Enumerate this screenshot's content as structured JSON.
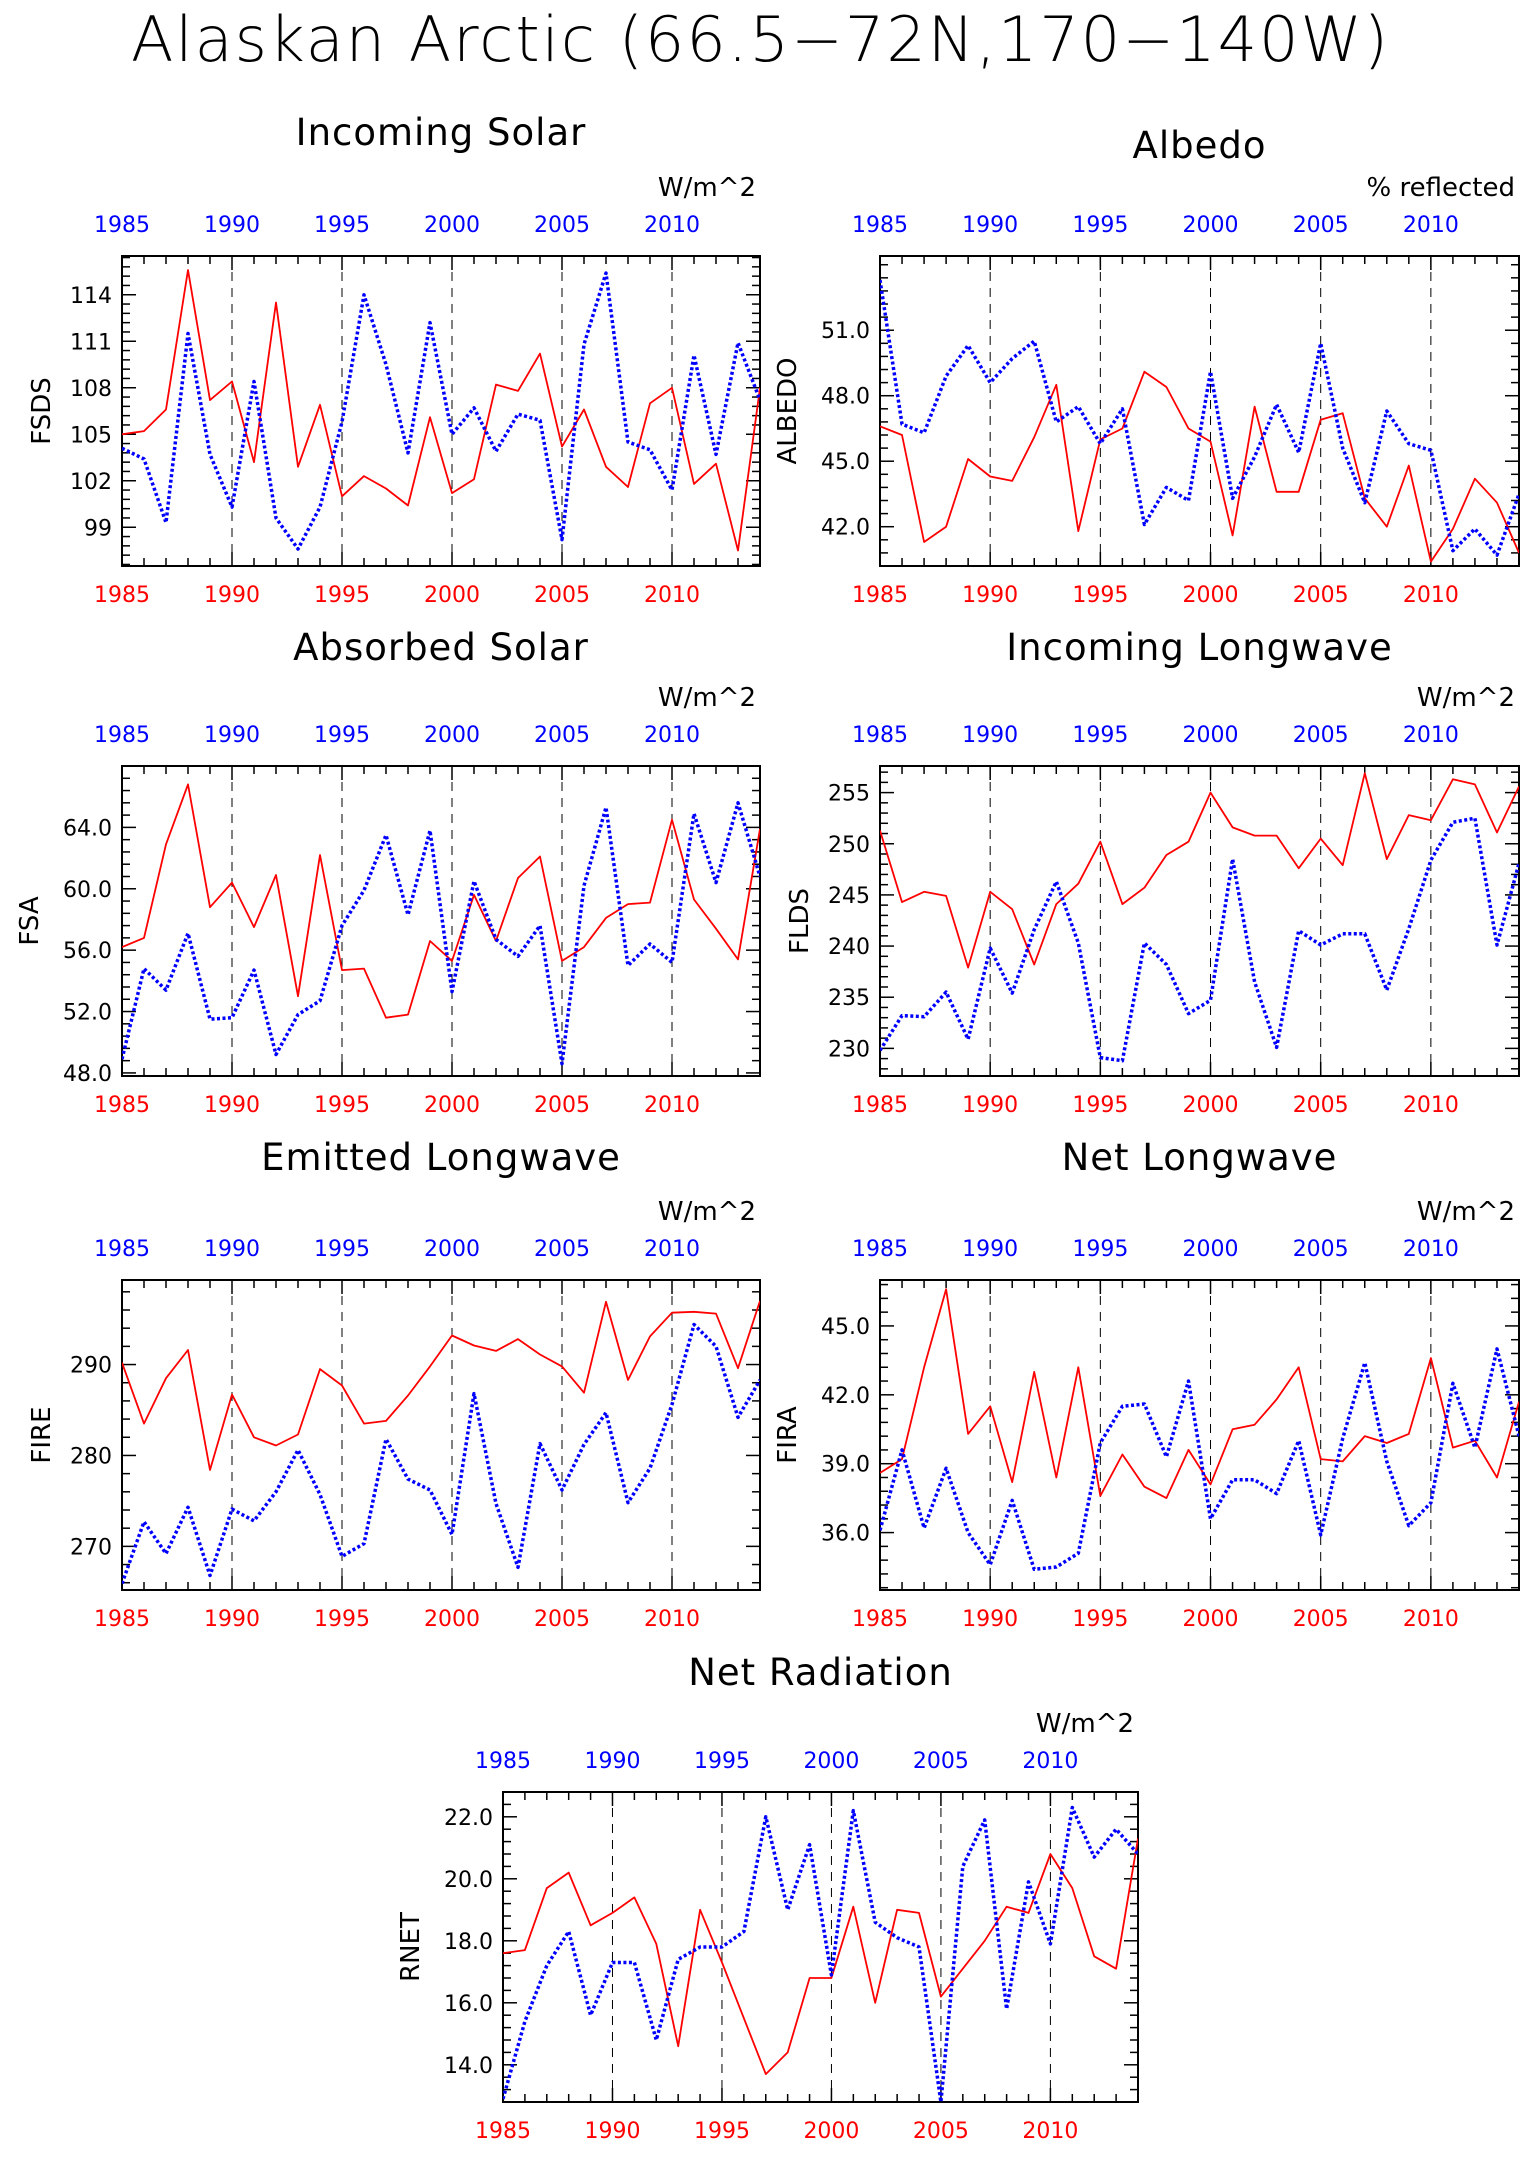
{
  "title": "Alaskan Arctic (66.5−72N,170−140W)",
  "colors": {
    "series_a": "#ff0000",
    "series_b": "#0000ff",
    "axes": "#000000"
  },
  "chart_data": [
    {
      "id": "fsds",
      "type": "line",
      "title": "Incoming Solar",
      "ylabel": "FSDS",
      "units": "W/m^2",
      "xlim": [
        1985,
        2014
      ],
      "ylim": [
        96.5,
        116.5
      ],
      "yticks": [
        99,
        102,
        105,
        108,
        111,
        114
      ],
      "yfmt": 0,
      "xticks": [
        1985,
        1990,
        1995,
        2000,
        2005,
        2010
      ],
      "x": [
        1985,
        1986,
        1987,
        1988,
        1989,
        1990,
        1991,
        1992,
        1993,
        1994,
        1995,
        1996,
        1997,
        1998,
        1999,
        2000,
        2001,
        2002,
        2003,
        2004,
        2005,
        2006,
        2007,
        2008,
        2009,
        2010,
        2011,
        2012,
        2013,
        2014
      ],
      "series": [
        {
          "style": "solid",
          "values": [
            105,
            105.2,
            106.6,
            115.6,
            107.2,
            108.4,
            103.2,
            113.5,
            102.9,
            106.9,
            101.0,
            102.3,
            101.5,
            100.4,
            106.1,
            101.2,
            102.1,
            108.2,
            107.8,
            110.2,
            104.2,
            106.6,
            102.9,
            101.6,
            107.0,
            108.0,
            101.8,
            103.1,
            97.5,
            108.0
          ]
        },
        {
          "style": "dotted",
          "values": [
            104.1,
            103.4,
            99.3,
            111.5,
            103.7,
            100.3,
            108.4,
            99.6,
            97.6,
            100.3,
            105.8,
            114.0,
            109.5,
            103.8,
            112.2,
            105.0,
            106.7,
            103.9,
            106.3,
            105.9,
            98.2,
            110.8,
            115.4,
            104.5,
            104.0,
            101.4,
            110.1,
            103.7,
            110.9,
            107.2
          ]
        }
      ]
    },
    {
      "id": "albedo",
      "type": "line",
      "title": "Albedo",
      "ylabel": "ALBEDO",
      "units": "% reflected",
      "xlim": [
        1985,
        2014
      ],
      "ylim": [
        40.2,
        54.4
      ],
      "yticks": [
        42.0,
        45.0,
        48.0,
        51.0
      ],
      "yfmt": 1,
      "xticks": [
        1985,
        1990,
        1995,
        2000,
        2005,
        2010
      ],
      "x": [
        1985,
        1986,
        1987,
        1988,
        1989,
        1990,
        1991,
        1992,
        1993,
        1994,
        1995,
        1996,
        1997,
        1998,
        1999,
        2000,
        2001,
        2002,
        2003,
        2004,
        2005,
        2006,
        2007,
        2008,
        2009,
        2010,
        2011,
        2012,
        2013,
        2014
      ],
      "series": [
        {
          "style": "solid",
          "values": [
            46.6,
            46.2,
            41.3,
            42.0,
            45.1,
            44.3,
            44.1,
            46.1,
            48.5,
            41.8,
            46.0,
            46.5,
            49.1,
            48.4,
            46.5,
            45.9,
            41.6,
            47.5,
            43.6,
            43.6,
            46.9,
            47.2,
            43.3,
            42.0,
            44.8,
            40.4,
            41.9,
            44.2,
            43.1,
            40.8
          ]
        },
        {
          "style": "dotted",
          "values": [
            53.3,
            46.7,
            46.3,
            48.9,
            50.3,
            48.6,
            49.7,
            50.5,
            46.8,
            47.5,
            45.8,
            47.4,
            42.1,
            43.8,
            43.2,
            49.1,
            43.3,
            45.2,
            47.6,
            45.4,
            50.4,
            45.6,
            43.1,
            47.3,
            45.8,
            45.5,
            40.9,
            41.9,
            40.7,
            43.5
          ]
        }
      ]
    },
    {
      "id": "fsa",
      "type": "line",
      "title": "Absorbed Solar",
      "ylabel": "FSA",
      "units": "W/m^2",
      "xlim": [
        1985,
        2014
      ],
      "ylim": [
        47.8,
        68.0
      ],
      "yticks": [
        48.0,
        52.0,
        56.0,
        60.0,
        64.0
      ],
      "yfmt": 1,
      "xticks": [
        1985,
        1990,
        1995,
        2000,
        2005,
        2010
      ],
      "x": [
        1985,
        1986,
        1987,
        1988,
        1989,
        1990,
        1991,
        1992,
        1993,
        1994,
        1995,
        1996,
        1997,
        1998,
        1999,
        2000,
        2001,
        2002,
        2003,
        2004,
        2005,
        2006,
        2007,
        2008,
        2009,
        2010,
        2011,
        2012,
        2013,
        2014
      ],
      "series": [
        {
          "style": "solid",
          "values": [
            56.2,
            56.8,
            62.9,
            66.8,
            58.8,
            60.4,
            57.5,
            60.9,
            53.0,
            62.2,
            54.7,
            54.8,
            51.6,
            51.8,
            56.6,
            55.3,
            59.6,
            56.6,
            60.7,
            62.1,
            55.3,
            56.2,
            58.1,
            59.0,
            59.1,
            64.5,
            59.3,
            57.4,
            55.4,
            63.9
          ]
        },
        {
          "style": "dotted",
          "values": [
            48.9,
            54.8,
            53.4,
            57.1,
            51.5,
            51.6,
            54.7,
            49.2,
            51.8,
            52.7,
            57.6,
            59.9,
            63.5,
            58.3,
            63.8,
            53.3,
            60.5,
            56.7,
            55.6,
            57.6,
            48.6,
            60.2,
            65.3,
            55.0,
            56.4,
            55.2,
            64.9,
            60.4,
            65.6,
            60.8
          ]
        }
      ]
    },
    {
      "id": "flds",
      "type": "line",
      "title": "Incoming Longwave",
      "ylabel": "FLDS",
      "units": "W/m^2",
      "xlim": [
        1985,
        2014
      ],
      "ylim": [
        227.3,
        257.6
      ],
      "yticks": [
        230,
        235,
        240,
        245,
        250,
        255
      ],
      "yfmt": 0,
      "xticks": [
        1985,
        1990,
        1995,
        2000,
        2005,
        2010
      ],
      "x": [
        1985,
        1986,
        1987,
        1988,
        1989,
        1990,
        1991,
        1992,
        1993,
        1994,
        1995,
        1996,
        1997,
        1998,
        1999,
        2000,
        2001,
        2002,
        2003,
        2004,
        2005,
        2006,
        2007,
        2008,
        2009,
        2010,
        2011,
        2012,
        2013,
        2014
      ],
      "series": [
        {
          "style": "solid",
          "values": [
            251.3,
            244.3,
            245.3,
            244.9,
            237.9,
            245.3,
            243.6,
            238.2,
            244.1,
            246.1,
            250.2,
            244.1,
            245.7,
            248.9,
            250.2,
            255.0,
            251.6,
            250.8,
            250.8,
            247.6,
            250.5,
            247.9,
            256.9,
            248.5,
            252.8,
            252.3,
            256.3,
            255.8,
            251.1,
            255.6
          ]
        },
        {
          "style": "dotted",
          "values": [
            229.8,
            233.2,
            233.1,
            235.5,
            230.9,
            239.8,
            235.4,
            241.6,
            246.3,
            240.3,
            229.1,
            228.8,
            240.3,
            238.2,
            233.4,
            234.7,
            248.5,
            236.5,
            230.1,
            241.5,
            240.1,
            241.2,
            241.2,
            235.7,
            241.7,
            248.4,
            252.1,
            252.5,
            240.1,
            248.1
          ]
        }
      ]
    },
    {
      "id": "fire",
      "type": "line",
      "title": "Emitted Longwave",
      "ylabel": "FIRE",
      "units": "W/m^2",
      "xlim": [
        1985,
        2014
      ],
      "ylim": [
        265.2,
        299.3
      ],
      "yticks": [
        270,
        280,
        290
      ],
      "yfmt": 0,
      "xticks": [
        1985,
        1990,
        1995,
        2000,
        2005,
        2010
      ],
      "x": [
        1985,
        1986,
        1987,
        1988,
        1989,
        1990,
        1991,
        1992,
        1993,
        1994,
        1995,
        1996,
        1997,
        1998,
        1999,
        2000,
        2001,
        2002,
        2003,
        2004,
        2005,
        2006,
        2007,
        2008,
        2009,
        2010,
        2011,
        2012,
        2013,
        2014
      ],
      "series": [
        {
          "style": "solid",
          "values": [
            290.2,
            283.5,
            288.5,
            291.6,
            278.4,
            286.7,
            282.0,
            281.1,
            282.3,
            289.5,
            287.7,
            283.5,
            283.8,
            286.6,
            289.8,
            293.2,
            292.1,
            291.5,
            292.8,
            291.1,
            289.8,
            286.9,
            296.9,
            288.3,
            293.1,
            295.7,
            295.8,
            295.6,
            289.6,
            297.0
          ]
        },
        {
          "style": "dotted",
          "values": [
            265.9,
            272.7,
            269.2,
            274.3,
            266.8,
            274.1,
            272.8,
            276.0,
            280.6,
            275.7,
            268.9,
            270.3,
            281.8,
            277.4,
            276.2,
            271.3,
            286.8,
            274.7,
            267.7,
            281.3,
            276.2,
            281.2,
            284.7,
            274.8,
            278.6,
            285.6,
            294.4,
            292.0,
            284.2,
            288.3
          ]
        }
      ]
    },
    {
      "id": "fira",
      "type": "line",
      "title": "Net Longwave",
      "ylabel": "FIRA",
      "units": "W/m^2",
      "xlim": [
        1985,
        2014
      ],
      "ylim": [
        33.5,
        47.0
      ],
      "yticks": [
        36.0,
        39.0,
        42.0,
        45.0
      ],
      "yfmt": 1,
      "xticks": [
        1985,
        1990,
        1995,
        2000,
        2005,
        2010
      ],
      "x": [
        1985,
        1986,
        1987,
        1988,
        1989,
        1990,
        1991,
        1992,
        1993,
        1994,
        1995,
        1996,
        1997,
        1998,
        1999,
        2000,
        2001,
        2002,
        2003,
        2004,
        2005,
        2006,
        2007,
        2008,
        2009,
        2010,
        2011,
        2012,
        2013,
        2014
      ],
      "series": [
        {
          "style": "solid",
          "values": [
            38.6,
            39.2,
            43.2,
            46.6,
            40.3,
            41.5,
            38.2,
            43.0,
            38.4,
            43.2,
            37.6,
            39.4,
            38.0,
            37.5,
            39.6,
            38.1,
            40.5,
            40.7,
            41.8,
            43.2,
            39.2,
            39.1,
            40.2,
            39.9,
            40.3,
            43.6,
            39.7,
            40.0,
            38.4,
            41.7
          ]
        },
        {
          "style": "dotted",
          "values": [
            36.1,
            39.6,
            36.2,
            38.8,
            36.0,
            34.6,
            37.4,
            34.4,
            34.5,
            35.1,
            39.9,
            41.5,
            41.6,
            39.3,
            42.6,
            36.6,
            38.3,
            38.3,
            37.7,
            40.0,
            35.9,
            40.1,
            43.4,
            39.1,
            36.3,
            37.3,
            42.5,
            39.7,
            44.0,
            40.2
          ]
        }
      ]
    },
    {
      "id": "rnet",
      "type": "line",
      "title": "Net Radiation",
      "ylabel": "RNET",
      "units": "W/m^2",
      "xlim": [
        1985,
        2014
      ],
      "ylim": [
        12.8,
        22.8
      ],
      "yticks": [
        14.0,
        16.0,
        18.0,
        20.0,
        22.0
      ],
      "yfmt": 1,
      "xticks": [
        1985,
        1990,
        1995,
        2000,
        2005,
        2010
      ],
      "x": [
        1985,
        1986,
        1987,
        1988,
        1989,
        1990,
        1991,
        1992,
        1993,
        1994,
        1995,
        1996,
        1997,
        1998,
        1999,
        2000,
        2001,
        2002,
        2003,
        2004,
        2005,
        2006,
        2007,
        2008,
        2009,
        2010,
        2011,
        2012,
        2013,
        2014
      ],
      "series": [
        {
          "style": "solid",
          "values": [
            17.6,
            17.7,
            19.7,
            20.2,
            18.5,
            18.9,
            19.4,
            17.9,
            14.6,
            19.0,
            17.3,
            15.5,
            13.7,
            14.4,
            16.8,
            16.8,
            19.1,
            16.0,
            19.0,
            18.9,
            16.2,
            17.1,
            18.0,
            19.1,
            18.9,
            20.8,
            19.7,
            17.5,
            17.1,
            21.3
          ]
        },
        {
          "style": "dotted",
          "values": [
            12.9,
            15.4,
            17.2,
            18.3,
            15.6,
            17.3,
            17.3,
            14.8,
            17.4,
            17.8,
            17.8,
            18.3,
            22.0,
            19.0,
            21.1,
            16.9,
            22.2,
            18.6,
            18.1,
            17.8,
            12.8,
            20.4,
            21.9,
            15.8,
            19.9,
            17.9,
            22.3,
            20.7,
            21.6,
            20.8
          ]
        }
      ]
    }
  ]
}
